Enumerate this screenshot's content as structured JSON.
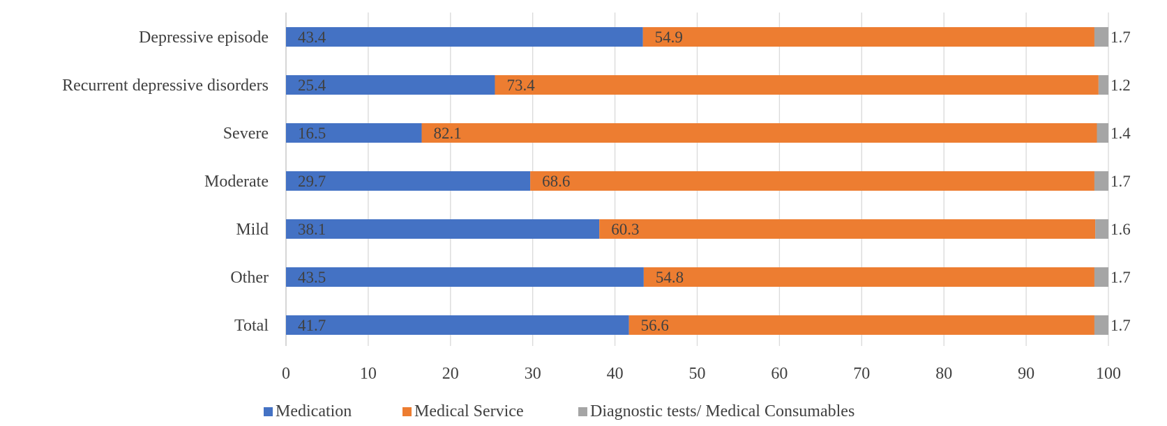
{
  "chart_data": {
    "type": "bar",
    "orientation": "horizontal",
    "stacked": true,
    "title": "",
    "xlabel": "",
    "ylabel": "",
    "xlim": [
      0,
      100
    ],
    "xticks": [
      0,
      10,
      20,
      30,
      40,
      50,
      60,
      70,
      80,
      90,
      100
    ],
    "grid": "vertical",
    "legend": "bottom",
    "categories": [
      "Depressive episode",
      "Recurrent depressive disorders",
      "Severe",
      "Moderate",
      "Mild",
      "Other",
      "Total"
    ],
    "series": [
      {
        "name": "Medication",
        "color": "#4472c4",
        "values": [
          43.4,
          25.4,
          16.5,
          29.7,
          38.1,
          43.5,
          41.7
        ]
      },
      {
        "name": "Medical Service",
        "color": "#ed7d31",
        "values": [
          54.9,
          73.4,
          82.1,
          68.6,
          60.3,
          54.8,
          56.6
        ]
      },
      {
        "name": "Diagnostic tests/ Medical Consumables",
        "color": "#a5a5a5",
        "values": [
          1.7,
          1.2,
          1.4,
          1.7,
          1.6,
          1.7,
          1.7
        ]
      }
    ]
  }
}
